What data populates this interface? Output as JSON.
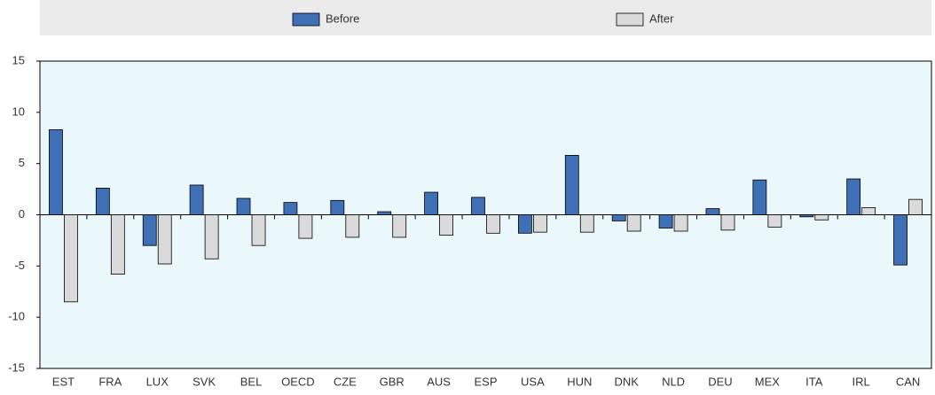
{
  "chart_data": {
    "type": "bar",
    "categories": [
      "EST",
      "FRA",
      "LUX",
      "SVK",
      "BEL",
      "OECD",
      "CZE",
      "GBR",
      "AUS",
      "ESP",
      "USA",
      "HUN",
      "DNK",
      "NLD",
      "DEU",
      "MEX",
      "ITA",
      "IRL",
      "CAN"
    ],
    "series": [
      {
        "name": "Before",
        "color": "#3f6fb5",
        "values": [
          8.3,
          2.6,
          -3.0,
          2.9,
          1.6,
          1.2,
          1.4,
          0.3,
          2.2,
          1.7,
          -1.8,
          5.8,
          -0.6,
          -1.3,
          0.6,
          3.4,
          -0.2,
          3.5,
          -4.9
        ]
      },
      {
        "name": "After",
        "color": "#dadada",
        "values": [
          -8.5,
          -5.8,
          -4.8,
          -4.3,
          -3.0,
          -2.3,
          -2.2,
          -2.2,
          -2.0,
          -1.8,
          -1.7,
          -1.7,
          -1.6,
          -1.6,
          -1.5,
          -1.2,
          -0.5,
          0.7,
          1.5
        ]
      }
    ],
    "ylim": [
      -15,
      15
    ],
    "yticks": [
      -15,
      -10,
      -5,
      0,
      5,
      10,
      15
    ],
    "grid": false
  }
}
